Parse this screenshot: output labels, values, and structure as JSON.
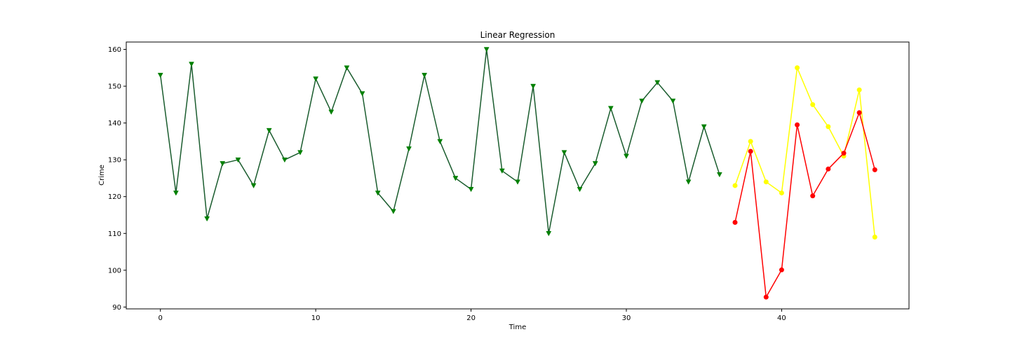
{
  "chart_data": {
    "type": "line",
    "title": "Linear Regression",
    "xlabel": "Time",
    "ylabel": "Crime",
    "xlim": [
      -2.2,
      48.2
    ],
    "ylim": [
      89.5,
      162
    ],
    "xticks": [
      0,
      10,
      20,
      30,
      40
    ],
    "yticks": [
      90,
      100,
      110,
      120,
      130,
      140,
      150,
      160
    ],
    "grid": false,
    "series": [
      {
        "color": "#008000",
        "line_color": "#1a5c2e",
        "marker": "triangle-down",
        "x": [
          0,
          1,
          2,
          3,
          4,
          5,
          6,
          7,
          8,
          9,
          10,
          11,
          12,
          13,
          14,
          15,
          16,
          17,
          18,
          19,
          20,
          21,
          22,
          23,
          24,
          25,
          26,
          27,
          28,
          29,
          30,
          31,
          32,
          33,
          34,
          35,
          36
        ],
        "values": [
          153,
          121,
          156,
          114,
          129,
          130,
          123,
          138,
          130,
          132,
          152,
          143,
          155,
          148,
          121,
          116,
          133,
          153,
          135,
          125,
          122,
          160,
          127,
          124,
          150,
          110,
          132,
          122,
          129,
          144,
          131,
          146,
          151,
          146,
          124,
          139,
          126
        ]
      },
      {
        "color": "#ffff00",
        "marker": "circle",
        "x": [
          37,
          38,
          39,
          40,
          41,
          42,
          43,
          44,
          45,
          46
        ],
        "values": [
          123,
          135,
          124,
          121,
          155,
          145,
          139,
          131,
          149,
          109
        ]
      },
      {
        "color": "#ff0000",
        "marker": "circle",
        "x": [
          37,
          38,
          39,
          40,
          41,
          42,
          43,
          44,
          45,
          46
        ],
        "values": [
          113,
          132.3,
          92.7,
          100.1,
          139.5,
          120.2,
          127.5,
          131.8,
          142.8,
          127.3
        ]
      }
    ]
  }
}
